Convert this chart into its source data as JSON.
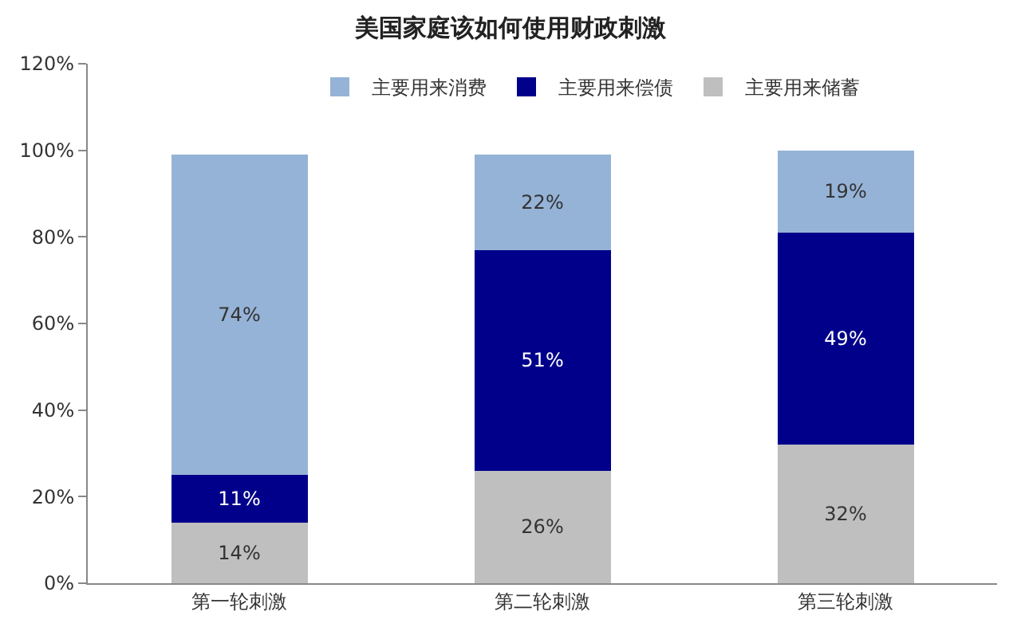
{
  "chart_data": {
    "type": "bar",
    "title": "美国家庭该如何使用财政刺激",
    "stacked": true,
    "categories": [
      "第一轮刺激",
      "第二轮刺激",
      "第三轮刺激"
    ],
    "series": [
      {
        "name": "主要用来储蓄",
        "color": "#bfbfbf",
        "values": [
          14,
          26,
          32
        ],
        "value_labels": [
          "14%",
          "26%",
          "32%"
        ]
      },
      {
        "name": "主要用来偿债",
        "color": "#00008b",
        "values": [
          11,
          51,
          49
        ],
        "value_labels": [
          "11%",
          "51%",
          "49%"
        ]
      },
      {
        "name": "主要用来消费",
        "color": "#95b3d7",
        "values": [
          74,
          22,
          19
        ],
        "value_labels": [
          "74%",
          "22%",
          "19%"
        ]
      }
    ],
    "ylim": [
      0,
      120
    ],
    "yticks": [
      {
        "value": 0,
        "label": "0%"
      },
      {
        "value": 20,
        "label": "20%"
      },
      {
        "value": 40,
        "label": "40%"
      },
      {
        "value": 60,
        "label": "60%"
      },
      {
        "value": 80,
        "label": "80%"
      },
      {
        "value": 100,
        "label": "100%"
      },
      {
        "value": 120,
        "label": "120%"
      }
    ],
    "legend": "top",
    "grid": false
  }
}
